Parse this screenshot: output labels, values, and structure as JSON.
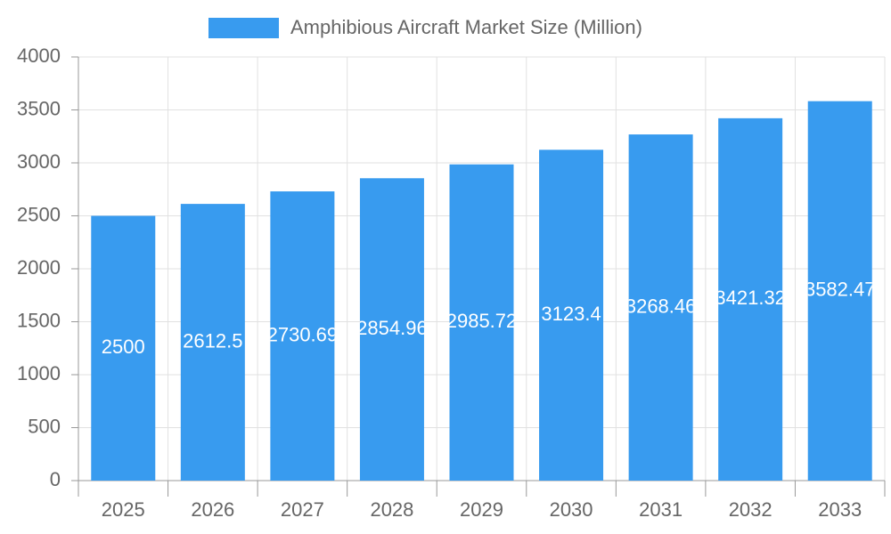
{
  "chart_data": {
    "type": "bar",
    "categories": [
      "2025",
      "2026",
      "2027",
      "2028",
      "2029",
      "2030",
      "2031",
      "2032",
      "2033"
    ],
    "series": [
      {
        "name": "Amphibious Aircraft Market Size (Million)",
        "color": "#389bef",
        "values": [
          2500,
          2612.5,
          2730.69,
          2854.96,
          2985.72,
          3123.4,
          3268.46,
          3421.32,
          3582.47
        ]
      }
    ],
    "ylim": [
      0,
      4000
    ],
    "yticks": [
      0,
      500,
      1000,
      1500,
      2000,
      2500,
      3000,
      3500,
      4000
    ],
    "grid": true,
    "legend": "top",
    "data_labels": true
  }
}
